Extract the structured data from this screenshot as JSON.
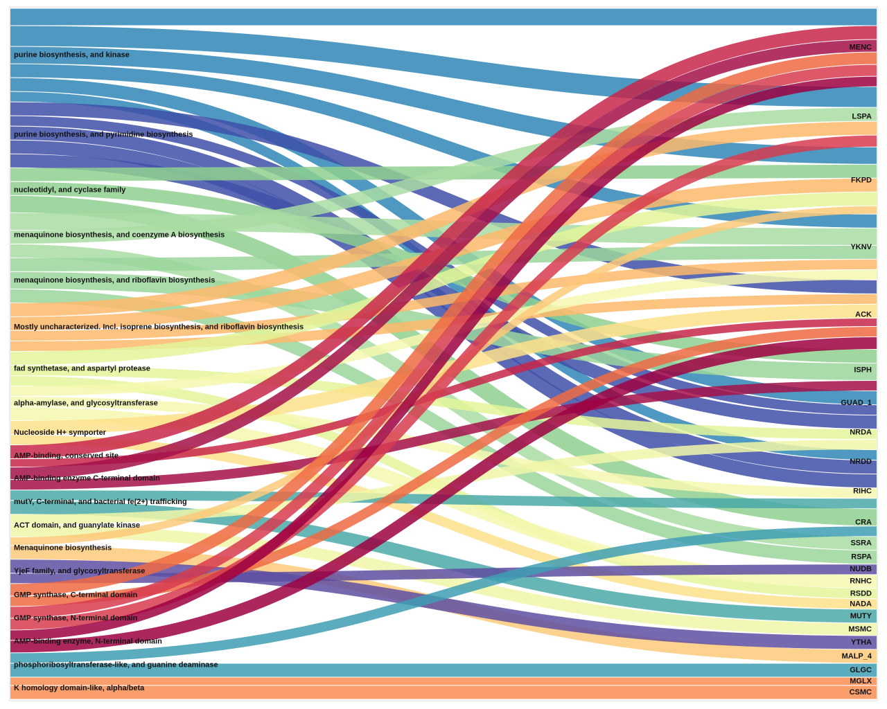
{
  "chart_data": {
    "type": "sankey",
    "left_nodes": [
      {
        "label": "purine biosynthesis, and kinase",
        "color": "#2f86b6"
      },
      {
        "label": "purine biosynthesis, and pyrimidine biosynthesis",
        "color": "#3f50a8"
      },
      {
        "label": "nucleotidyl, and cyclase family",
        "color": "#8fd08f"
      },
      {
        "label": "menaquinone biosynthesis, and coenzyme A biosynthesis",
        "color": "#a9dca3"
      },
      {
        "label": "menaquinone biosynthesis, and riboflavin biosynthesis",
        "color": "#9bd69c"
      },
      {
        "label": "Mostly uncharacterized. Incl. isoprene biosynthesis, and riboflavin biosynthesis",
        "color": "#fdb96b"
      },
      {
        "label": "fad synthetase, and aspartyl protease",
        "color": "#e3f49a"
      },
      {
        "label": "alpha-amylase, and glycosyltransferase",
        "color": "#f6f8b0"
      },
      {
        "label": "Nucleoside H+ symporter",
        "color": "#fee08b"
      },
      {
        "label": "AMP-binding, conserved site",
        "color": "#c8264a"
      },
      {
        "label": "AMP-binding enzyme C-terminal domain",
        "color": "#a3104a"
      },
      {
        "label": "mutY, C-terminal, and bacterial fe(2+) trafficking",
        "color": "#4aa9a8"
      },
      {
        "label": "ACT domain, and guanylate kinase",
        "color": "#f1f6a8"
      },
      {
        "label": "Menaquinone biosynthesis",
        "color": "#fdc97a"
      },
      {
        "label": "YjeF family, and glycosyltransferase",
        "color": "#5e4fa2"
      },
      {
        "label": "GMP synthase, C-terminal domain",
        "color": "#ee6a43"
      },
      {
        "label": "GMP synthase, N-terminal domain",
        "color": "#d73c4f"
      },
      {
        "label": "AMP-binding enzyme, N-terminal domain",
        "color": "#9e0142"
      },
      {
        "label": "phosphoribosyltransferase-like, and guanine deaminase",
        "color": "#3e9db3"
      },
      {
        "label": "K homology domain-like, alpha/beta",
        "color": "#f98e52"
      }
    ],
    "right_nodes": [
      "MENC",
      "LSPA",
      "FKPD",
      "YKNV",
      "ACK",
      "ISPH",
      "GUAD_1",
      "NRDA",
      "NRDD",
      "RIHC",
      "CRA",
      "SSRA",
      "RSPA",
      "NUDB",
      "RNHC",
      "RSDD",
      "NADA",
      "MUTY",
      "MSMC",
      "YTHA",
      "MALP_4",
      "GLGC",
      "MGLX",
      "CSMC"
    ],
    "links": [
      {
        "source": 0,
        "target": 0,
        "value": 25
      },
      {
        "source": 0,
        "target": 1,
        "value": 30
      },
      {
        "source": 0,
        "target": 2,
        "value": 25
      },
      {
        "source": 0,
        "target": 3,
        "value": 20
      },
      {
        "source": 0,
        "target": 6,
        "value": 20
      },
      {
        "source": 0,
        "target": 8,
        "value": 15
      },
      {
        "source": 1,
        "target": 4,
        "value": 20
      },
      {
        "source": 1,
        "target": 6,
        "value": 15
      },
      {
        "source": 1,
        "target": 8,
        "value": 20
      },
      {
        "source": 1,
        "target": 9,
        "value": 20
      },
      {
        "source": 1,
        "target": 7,
        "value": 20
      },
      {
        "source": 2,
        "target": 2,
        "value": 20
      },
      {
        "source": 2,
        "target": 5,
        "value": 20
      },
      {
        "source": 2,
        "target": 10,
        "value": 25
      },
      {
        "source": 3,
        "target": 3,
        "value": 25
      },
      {
        "source": 3,
        "target": 1,
        "value": 20
      },
      {
        "source": 3,
        "target": 11,
        "value": 20
      },
      {
        "source": 4,
        "target": 3,
        "value": 20
      },
      {
        "source": 4,
        "target": 5,
        "value": 25
      },
      {
        "source": 4,
        "target": 12,
        "value": 20
      },
      {
        "source": 5,
        "target": 1,
        "value": 20
      },
      {
        "source": 5,
        "target": 2,
        "value": 20
      },
      {
        "source": 5,
        "target": 3,
        "value": 15
      },
      {
        "source": 5,
        "target": 4,
        "value": 15
      },
      {
        "source": 6,
        "target": 2,
        "value": 20
      },
      {
        "source": 6,
        "target": 7,
        "value": 15
      },
      {
        "source": 6,
        "target": 15,
        "value": 15
      },
      {
        "source": 7,
        "target": 3,
        "value": 15
      },
      {
        "source": 7,
        "target": 9,
        "value": 15
      },
      {
        "source": 7,
        "target": 14,
        "value": 20
      },
      {
        "source": 8,
        "target": 4,
        "value": 20
      },
      {
        "source": 8,
        "target": 16,
        "value": 15
      },
      {
        "source": 9,
        "target": 0,
        "value": 20
      },
      {
        "source": 9,
        "target": 4,
        "value": 12
      },
      {
        "source": 10,
        "target": 0,
        "value": 18
      },
      {
        "source": 10,
        "target": 5,
        "value": 15
      },
      {
        "source": 11,
        "target": 9,
        "value": 15
      },
      {
        "source": 11,
        "target": 17,
        "value": 20
      },
      {
        "source": 12,
        "target": 7,
        "value": 15
      },
      {
        "source": 12,
        "target": 18,
        "value": 18
      },
      {
        "source": 13,
        "target": 2,
        "value": 12
      },
      {
        "source": 13,
        "target": 20,
        "value": 20
      },
      {
        "source": 14,
        "target": 19,
        "value": 20
      },
      {
        "source": 14,
        "target": 13,
        "value": 15
      },
      {
        "source": 15,
        "target": 0,
        "value": 18
      },
      {
        "source": 15,
        "target": 4,
        "value": 15
      },
      {
        "source": 16,
        "target": 0,
        "value": 17
      },
      {
        "source": 16,
        "target": 1,
        "value": 17
      },
      {
        "source": 17,
        "target": 0,
        "value": 15
      },
      {
        "source": 17,
        "target": 4,
        "value": 18
      },
      {
        "source": 18,
        "target": 10,
        "value": 15
      },
      {
        "source": 18,
        "target": 21,
        "value": 20
      },
      {
        "source": 19,
        "target": 22,
        "value": 12
      },
      {
        "source": 19,
        "target": 23,
        "value": 20
      }
    ]
  }
}
